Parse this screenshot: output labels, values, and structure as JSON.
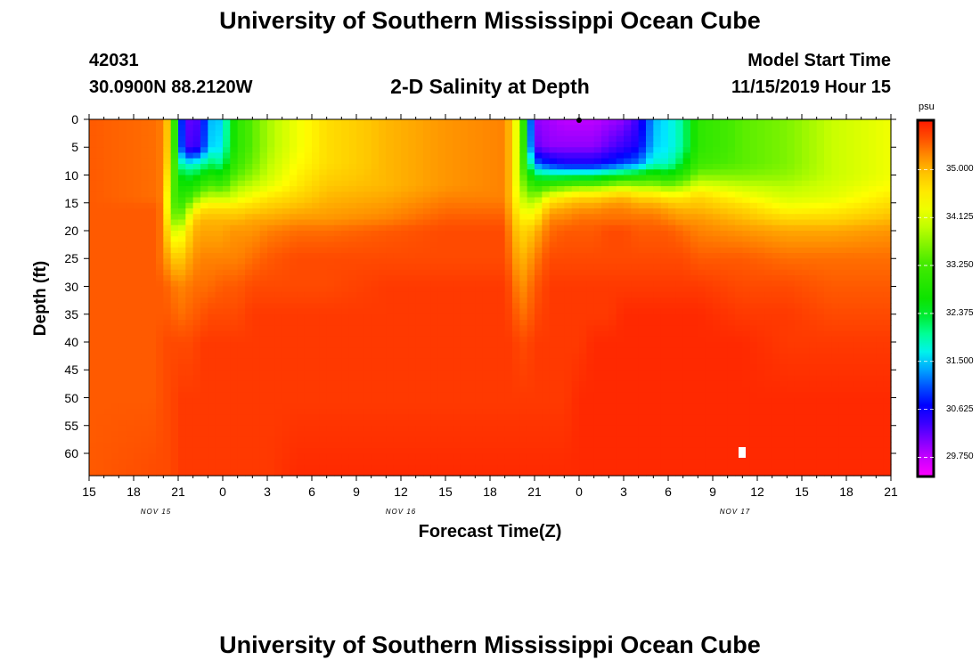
{
  "header": {
    "title": "University of Southern Mississippi Ocean Cube",
    "station_id": "42031",
    "coordinates": "30.0900N 88.2120W",
    "plot_title": "2-D Salinity at Depth",
    "model_start_label": "Model Start Time",
    "model_start_value": "11/15/2019 Hour 15"
  },
  "footer": {
    "title": "University of Southern Mississippi Ocean Cube"
  },
  "chart_data": {
    "type": "heatmap",
    "title": "2-D Salinity at Depth",
    "xlabel": "Forecast Time(Z)",
    "ylabel": "Depth (ft)",
    "x_range_hours": [
      0,
      54
    ],
    "x_tick_labels": [
      "15",
      "18",
      "21",
      "0",
      "3",
      "6",
      "9",
      "12",
      "15",
      "18",
      "21",
      "0",
      "3",
      "6",
      "9",
      "12",
      "15",
      "18",
      "21"
    ],
    "date_labels": [
      {
        "label": "NOV 15",
        "hour": 4.5
      },
      {
        "label": "NOV 16",
        "hour": 21
      },
      {
        "label": "NOV 17",
        "hour": 43.5
      }
    ],
    "y_range": [
      0,
      64
    ],
    "y_ticks": [
      0,
      5,
      10,
      15,
      20,
      25,
      30,
      35,
      40,
      45,
      50,
      55,
      60
    ],
    "colorbar": {
      "unit": "psu",
      "ticks": [
        "35.000",
        "34.125",
        "33.250",
        "32.375",
        "31.500",
        "30.625",
        "29.750"
      ],
      "min": 29.4,
      "max": 35.9
    },
    "salinity_field": {
      "x_hours": [
        0,
        4.5,
        5,
        5.5,
        6,
        6.5,
        7,
        7.5,
        8,
        9,
        9.5,
        10,
        11,
        12,
        14,
        16,
        20,
        24,
        28,
        28.5,
        29,
        29.5,
        30,
        31,
        32,
        33,
        34,
        35,
        36,
        37,
        38,
        39,
        40,
        41,
        44,
        47,
        50,
        54
      ],
      "depths_ft": [
        0,
        5,
        8,
        10,
        12,
        14,
        16,
        18,
        20,
        25,
        30,
        35,
        40,
        50,
        64
      ],
      "values_psu": [
        [
          35.5,
          35.5,
          35.5,
          35.5,
          35.5,
          35.5,
          35.5,
          35.5,
          35.5,
          35.5,
          35.5,
          35.5,
          35.5,
          35.5,
          35.5
        ],
        [
          35.4,
          35.4,
          35.4,
          35.4,
          35.4,
          35.4,
          35.5,
          35.5,
          35.5,
          35.5,
          35.5,
          35.5,
          35.5,
          35.5,
          35.6
        ],
        [
          35.3,
          35.3,
          35.3,
          35.3,
          35.3,
          35.3,
          35.3,
          35.3,
          35.3,
          35.3,
          35.5,
          35.5,
          35.6,
          35.6,
          35.6
        ],
        [
          34.6,
          34.5,
          34.3,
          34.0,
          33.8,
          33.6,
          33.6,
          33.9,
          34.3,
          35.0,
          35.4,
          35.5,
          35.6,
          35.6,
          35.6
        ],
        [
          31.5,
          31.6,
          32.2,
          32.6,
          32.8,
          33.0,
          33.2,
          33.4,
          34.0,
          34.8,
          35.3,
          35.4,
          35.6,
          35.7,
          35.7
        ],
        [
          30.2,
          30.3,
          31.6,
          32.2,
          32.6,
          33.0,
          33.5,
          34.0,
          34.5,
          35.0,
          35.3,
          35.4,
          35.6,
          35.7,
          35.7
        ],
        [
          30.2,
          30.3,
          31.8,
          32.4,
          32.8,
          33.4,
          34.2,
          34.8,
          35.0,
          35.2,
          35.4,
          35.5,
          35.6,
          35.7,
          35.7
        ],
        [
          30.3,
          30.5,
          31.8,
          32.4,
          33.0,
          33.8,
          34.6,
          35.0,
          35.1,
          35.3,
          35.4,
          35.5,
          35.7,
          35.7,
          35.7
        ],
        [
          31.4,
          31.5,
          32.2,
          32.8,
          33.4,
          34.0,
          34.7,
          35.0,
          35.1,
          35.3,
          35.4,
          35.6,
          35.7,
          35.7,
          35.7
        ],
        [
          31.5,
          31.6,
          32.0,
          32.6,
          33.2,
          34.0,
          34.7,
          35.0,
          35.1,
          35.3,
          35.5,
          35.6,
          35.7,
          35.7,
          35.7
        ],
        [
          32.4,
          32.5,
          32.8,
          33.2,
          33.6,
          34.0,
          34.7,
          35.0,
          35.2,
          35.3,
          35.5,
          35.6,
          35.7,
          35.7,
          35.7
        ],
        [
          33.0,
          33.0,
          33.2,
          33.4,
          33.8,
          34.2,
          34.7,
          35.0,
          35.2,
          35.3,
          35.5,
          35.6,
          35.7,
          35.7,
          35.7
        ],
        [
          33.4,
          33.4,
          33.5,
          33.7,
          34.0,
          34.4,
          34.8,
          35.1,
          35.2,
          35.4,
          35.6,
          35.7,
          35.7,
          35.7,
          35.7
        ],
        [
          33.8,
          33.8,
          33.9,
          34.0,
          34.2,
          34.6,
          34.9,
          35.1,
          35.3,
          35.5,
          35.6,
          35.7,
          35.7,
          35.7,
          35.7
        ],
        [
          34.3,
          34.3,
          34.4,
          34.5,
          34.6,
          34.8,
          35.0,
          35.2,
          35.4,
          35.6,
          35.6,
          35.7,
          35.7,
          35.7,
          35.8
        ],
        [
          34.7,
          34.7,
          34.7,
          34.8,
          34.9,
          35.0,
          35.1,
          35.2,
          35.4,
          35.6,
          35.6,
          35.7,
          35.7,
          35.7,
          35.8
        ],
        [
          35.0,
          35.0,
          35.0,
          35.0,
          35.0,
          35.1,
          35.2,
          35.3,
          35.5,
          35.6,
          35.7,
          35.7,
          35.7,
          35.7,
          35.8
        ],
        [
          35.2,
          35.2,
          35.2,
          35.2,
          35.2,
          35.3,
          35.4,
          35.5,
          35.6,
          35.6,
          35.7,
          35.7,
          35.7,
          35.7,
          35.8
        ],
        [
          35.3,
          35.3,
          35.3,
          35.3,
          35.3,
          35.3,
          35.4,
          35.5,
          35.6,
          35.6,
          35.7,
          35.7,
          35.7,
          35.7,
          35.8
        ],
        [
          34.8,
          34.8,
          34.8,
          34.8,
          34.8,
          34.8,
          34.9,
          35.0,
          35.1,
          35.3,
          35.5,
          35.6,
          35.7,
          35.7,
          35.8
        ],
        [
          33.8,
          33.8,
          33.8,
          33.8,
          33.9,
          34.1,
          34.3,
          34.6,
          34.8,
          35.0,
          35.2,
          35.4,
          35.6,
          35.7,
          35.8
        ],
        [
          32.2,
          32.3,
          32.6,
          33.0,
          33.4,
          33.8,
          34.2,
          34.5,
          34.8,
          35.1,
          35.3,
          35.4,
          35.6,
          35.7,
          35.8
        ],
        [
          30.0,
          30.2,
          31.2,
          32.2,
          33.0,
          33.6,
          34.2,
          34.6,
          35.0,
          35.3,
          35.5,
          35.6,
          35.7,
          35.7,
          35.8
        ],
        [
          29.9,
          30.0,
          30.8,
          32.0,
          33.2,
          34.4,
          35.0,
          35.3,
          35.4,
          35.6,
          35.7,
          35.7,
          35.7,
          35.7,
          35.8
        ],
        [
          29.8,
          30.0,
          30.6,
          32.0,
          33.4,
          34.6,
          35.1,
          35.3,
          35.5,
          35.6,
          35.7,
          35.7,
          35.7,
          35.7,
          35.8
        ],
        [
          29.8,
          30.0,
          30.6,
          32.0,
          33.6,
          34.8,
          35.2,
          35.4,
          35.5,
          35.6,
          35.7,
          35.7,
          35.7,
          35.8,
          35.8
        ],
        [
          29.8,
          30.0,
          30.6,
          32.0,
          33.6,
          34.8,
          35.2,
          35.4,
          35.5,
          35.6,
          35.7,
          35.7,
          35.8,
          35.8,
          35.8
        ],
        [
          29.9,
          30.2,
          30.8,
          32.2,
          33.8,
          34.9,
          35.3,
          35.4,
          35.6,
          35.6,
          35.7,
          35.7,
          35.8,
          35.8,
          35.8
        ],
        [
          30.0,
          30.4,
          31.0,
          32.4,
          34.0,
          35.0,
          35.3,
          35.4,
          35.6,
          35.6,
          35.7,
          35.8,
          35.8,
          35.8,
          35.8
        ],
        [
          30.4,
          30.6,
          31.2,
          32.6,
          33.8,
          34.8,
          35.2,
          35.4,
          35.5,
          35.6,
          35.7,
          35.8,
          35.8,
          35.8,
          35.8
        ],
        [
          31.4,
          31.5,
          31.8,
          32.8,
          33.8,
          34.8,
          35.2,
          35.4,
          35.5,
          35.6,
          35.7,
          35.8,
          35.8,
          35.8,
          35.8
        ],
        [
          31.6,
          31.6,
          31.8,
          32.6,
          33.6,
          34.6,
          35.1,
          35.3,
          35.5,
          35.6,
          35.7,
          35.8,
          35.8,
          35.8,
          35.8
        ],
        [
          32.0,
          32.0,
          32.4,
          33.0,
          33.8,
          34.6,
          35.0,
          35.2,
          35.4,
          35.6,
          35.7,
          35.8,
          35.8,
          35.8,
          35.8
        ],
        [
          33.0,
          33.0,
          33.2,
          33.6,
          34.2,
          34.8,
          35.0,
          35.2,
          35.3,
          35.5,
          35.7,
          35.8,
          35.8,
          35.8,
          35.8
        ],
        [
          33.4,
          33.4,
          33.4,
          33.6,
          34.0,
          34.4,
          34.8,
          35.0,
          35.2,
          35.5,
          35.6,
          35.7,
          35.8,
          35.8,
          35.8
        ],
        [
          33.6,
          33.6,
          33.6,
          33.7,
          33.9,
          34.1,
          34.4,
          34.8,
          35.1,
          35.4,
          35.6,
          35.7,
          35.7,
          35.8,
          35.8
        ],
        [
          34.0,
          34.0,
          34.0,
          34.0,
          34.1,
          34.2,
          34.5,
          34.8,
          35.1,
          35.4,
          35.5,
          35.6,
          35.7,
          35.8,
          35.8
        ],
        [
          34.3,
          34.3,
          34.3,
          34.3,
          34.4,
          34.6,
          34.8,
          35.0,
          35.2,
          35.4,
          35.5,
          35.6,
          35.7,
          35.8,
          35.8
        ]
      ]
    }
  }
}
